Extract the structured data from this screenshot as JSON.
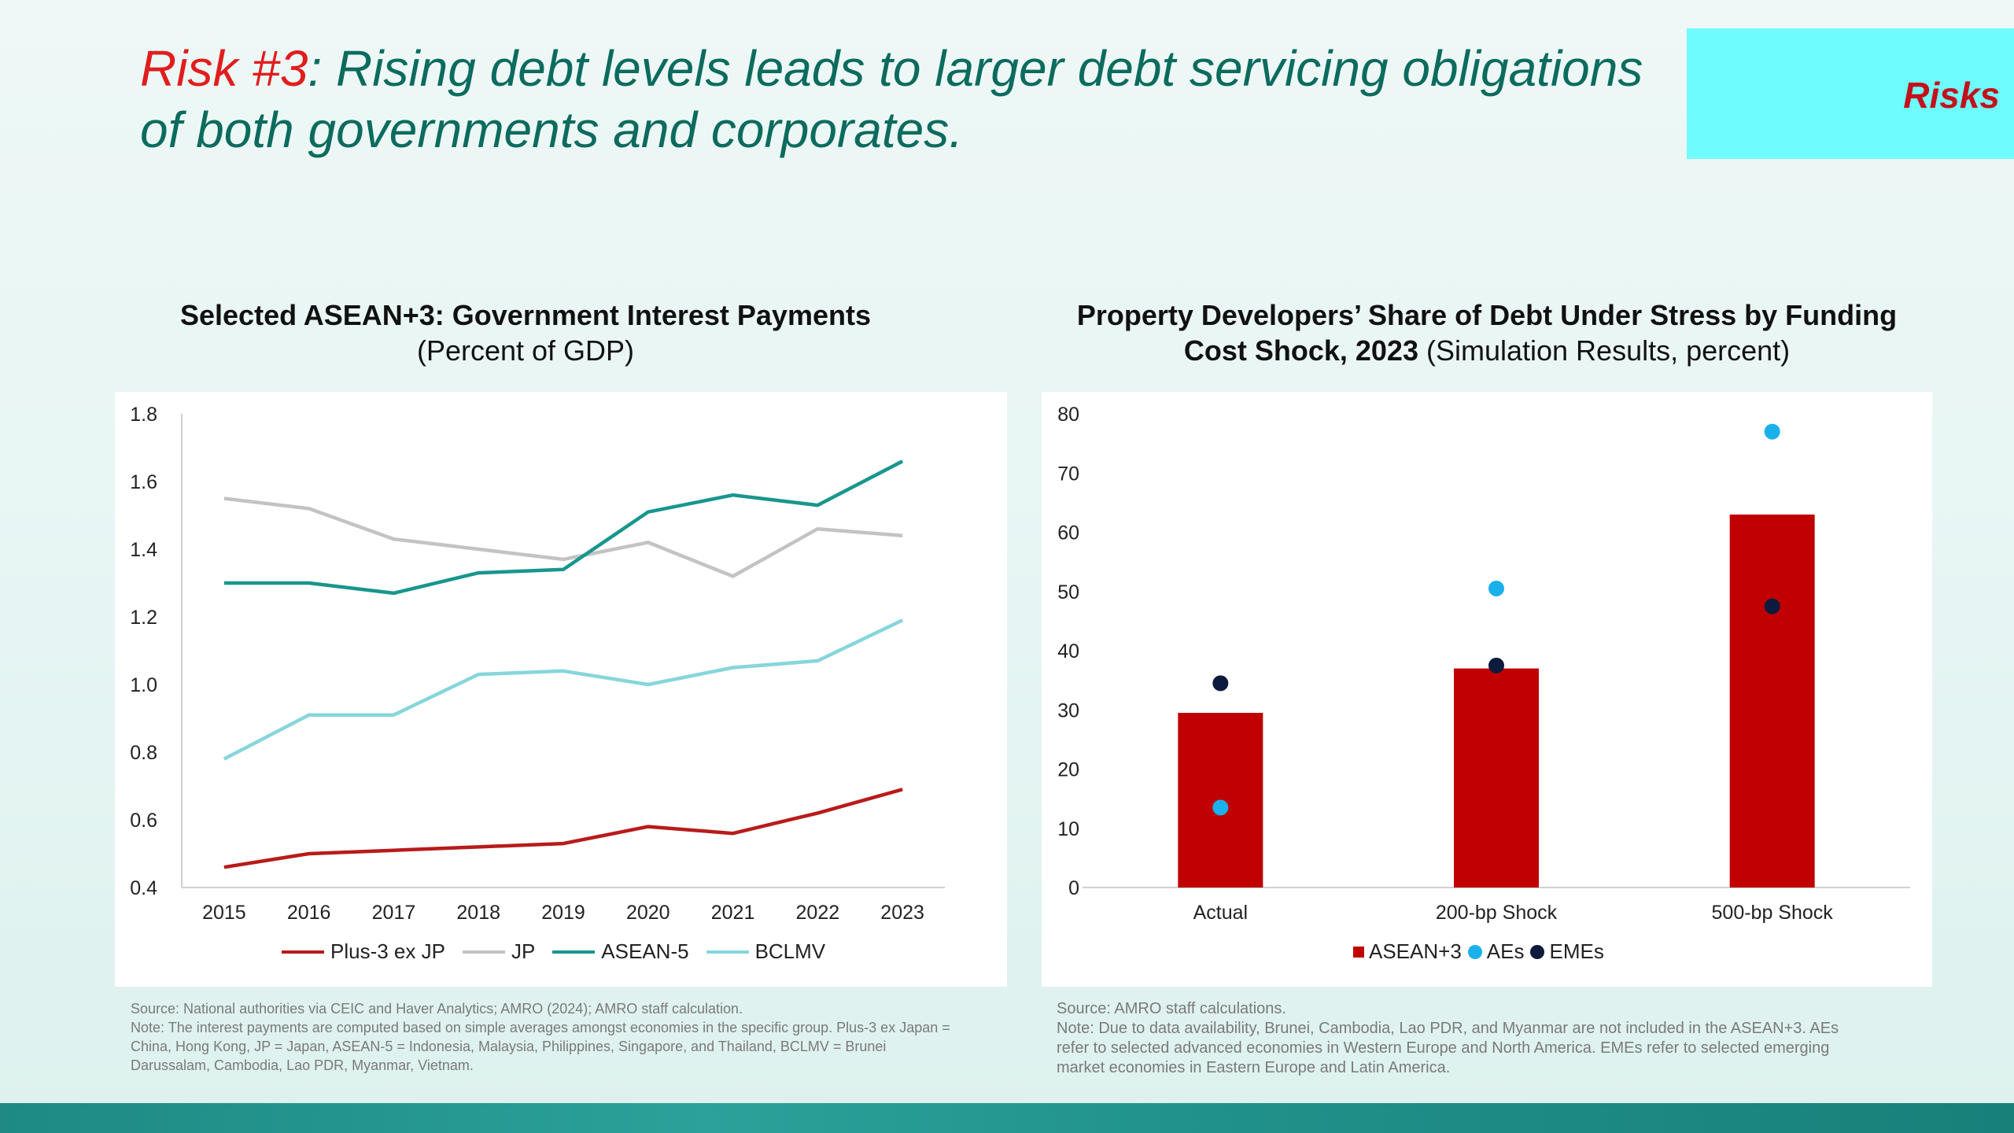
{
  "header": {
    "risk_label": "Risk #3",
    "headline_line1": ": Rising debt levels leads to larger debt servicing obligations",
    "headline_line2": "of both governments and corporates.",
    "section_tag": "Risks"
  },
  "colors": {
    "plus3_ex_jp": "#b81b1b",
    "jp": "#c3c3c3",
    "asean5": "#18968d",
    "bclmv": "#86d6db",
    "asean3_bar": "#c00000",
    "aes_dot": "#1ab0ec",
    "emes_dot": "#0c1a3d"
  },
  "left_chart": {
    "title_bold": "Selected ASEAN+3: Government Interest Payments",
    "title_sub": "(Percent of GDP)",
    "source": "Source: National authorities via CEIC and Haver Analytics; AMRO (2024); AMRO staff calculation.",
    "note_lines": [
      "Note: The interest payments are computed based on simple averages amongst economies in the specific group. Plus-3 ex Japan =",
      "China, Hong Kong, JP = Japan, ASEAN-5 = Indonesia, Malaysia, Philippines, Singapore, and Thailand, BCLMV = Brunei",
      "Darussalam, Cambodia, Lao PDR, Myanmar, Vietnam."
    ]
  },
  "right_chart": {
    "title_line1": "Property Developers’ Share of Debt Under Stress by Funding",
    "title_line2_bold": "Cost Shock, 2023",
    "title_line2_rest": " (Simulation Results, percent)",
    "source": "Source: AMRO staff calculations.",
    "note_lines": [
      "Note: Due to data availability, Brunei, Cambodia, Lao PDR, and Myanmar are not included in the ASEAN+3. AEs",
      "refer to selected advanced economies in Western Europe and North America. EMEs refer to selected emerging",
      "market economies in Eastern Europe and Latin America."
    ]
  },
  "chart_data": [
    {
      "type": "line",
      "x": [
        "2015",
        "2016",
        "2017",
        "2018",
        "2019",
        "2020",
        "2021",
        "2022",
        "2023"
      ],
      "ylim": [
        0.4,
        1.8
      ],
      "yticks": [
        "0.4",
        "0.6",
        "0.8",
        "1.0",
        "1.2",
        "1.4",
        "1.6",
        "1.8"
      ],
      "grid": false,
      "legend_position": "bottom",
      "series": [
        {
          "name": "Plus-3 ex JP",
          "color": "#b81b1b",
          "values": [
            0.46,
            0.5,
            0.51,
            0.52,
            0.53,
            0.58,
            0.56,
            0.62,
            0.69
          ]
        },
        {
          "name": "JP",
          "color": "#c3c3c3",
          "values": [
            1.55,
            1.52,
            1.43,
            1.4,
            1.37,
            1.42,
            1.32,
            1.46,
            1.44
          ]
        },
        {
          "name": "ASEAN-5",
          "color": "#18968d",
          "values": [
            1.3,
            1.3,
            1.27,
            1.33,
            1.34,
            1.51,
            1.56,
            1.53,
            1.66
          ]
        },
        {
          "name": "BCLMV",
          "color": "#86d6db",
          "values": [
            0.78,
            0.91,
            0.91,
            1.03,
            1.04,
            1.0,
            1.05,
            1.07,
            1.19
          ]
        }
      ]
    },
    {
      "type": "bar",
      "categories": [
        "Actual",
        "200-bp Shock",
        "500-bp Shock"
      ],
      "ylim": [
        0,
        80
      ],
      "yticks": [
        "0",
        "10",
        "20",
        "30",
        "40",
        "50",
        "60",
        "70",
        "80"
      ],
      "grid": false,
      "legend_position": "bottom",
      "series": [
        {
          "name": "ASEAN+3",
          "kind": "bar",
          "color": "#c00000",
          "values": [
            29.5,
            37,
            63
          ]
        },
        {
          "name": "AEs",
          "kind": "dot",
          "color": "#1ab0ec",
          "values": [
            13.5,
            50.5,
            77
          ]
        },
        {
          "name": "EMEs",
          "kind": "dot",
          "color": "#0c1a3d",
          "values": [
            34.5,
            37.5,
            47.5
          ]
        }
      ]
    }
  ]
}
